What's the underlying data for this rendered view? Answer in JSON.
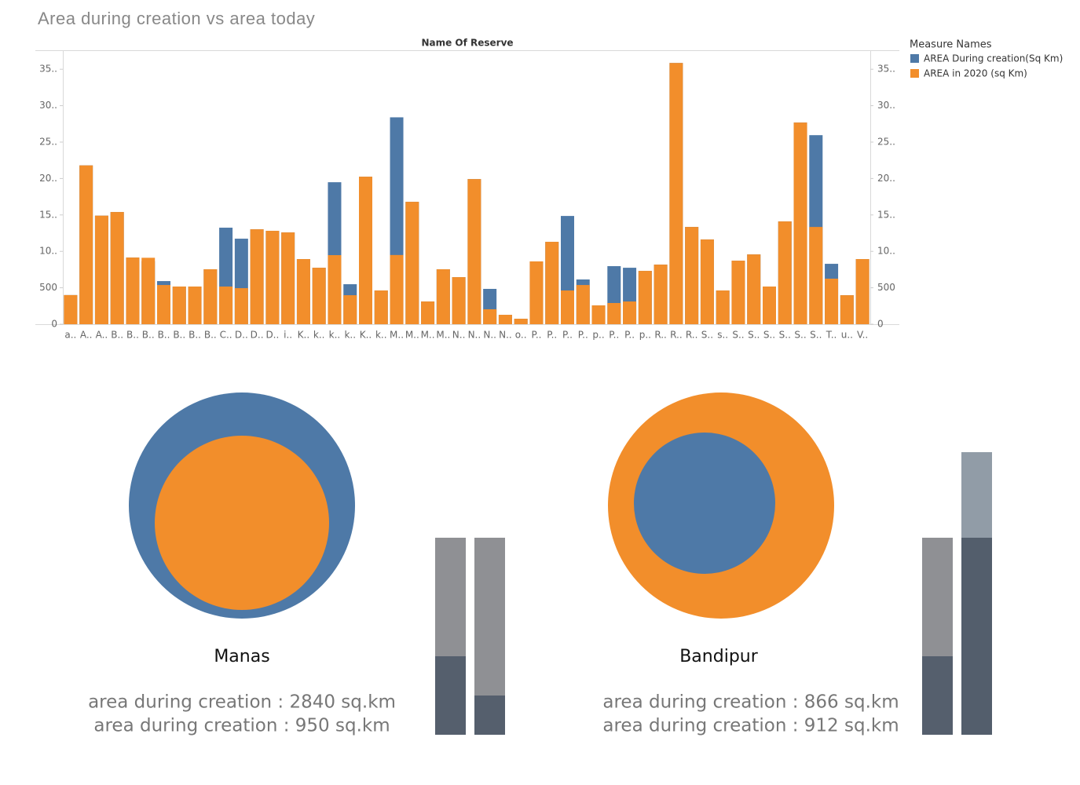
{
  "chart_data": {
    "type": "bar",
    "title": "Area during creation vs area today",
    "header": "Name Of Reserve",
    "legend_title": "Measure Names",
    "legend": "right",
    "grid": false,
    "categories": [
      "a..",
      "A..",
      "A..",
      "B..",
      "B..",
      "B..",
      "B..",
      "B..",
      "B..",
      "B..",
      "C..",
      "D..",
      "D..",
      "D..",
      "i..",
      "K..",
      "k..",
      "k..",
      "k..",
      "K..",
      "k..",
      "M..",
      "M..",
      "M..",
      "M..",
      "N..",
      "N..",
      "N..",
      "N..",
      "o..",
      "P..",
      "P..",
      "P..",
      "P..",
      "p..",
      "P..",
      "P..",
      "p..",
      "R..",
      "R..",
      "R..",
      "S..",
      "s..",
      "S..",
      "S..",
      "S..",
      "S..",
      "S..",
      "S..",
      "T..",
      "u..",
      "V.."
    ],
    "series": [
      {
        "name": "AREA During creation(Sq Km)",
        "color": "#4e79a7",
        "values": [
          400,
          2180,
          1490,
          1540,
          915,
          866,
          592,
          517,
          517,
          754,
          1325,
          1174,
          1303,
          1282,
          1260,
          894,
          775,
          1949,
          549,
          2025,
          463,
          2840,
          1680,
          312,
          754,
          646,
          1992,
          485,
          129,
          75,
          862,
          1131,
          1486,
          614,
          258,
          797,
          775,
          732,
          818,
          3586,
          1335,
          1163,
          463,
          872,
          958,
          517,
          1411,
          2768,
          2595,
          829,
          398,
          894
        ]
      },
      {
        "name": "AREA in 2020 (sq Km)",
        "color": "#f28e2b",
        "axis": "y2",
        "values": [
          400,
          2180,
          1490,
          1540,
          915,
          912,
          538,
          517,
          517,
          754,
          517,
          495,
          1303,
          1282,
          1260,
          894,
          775,
          948,
          398,
          2025,
          463,
          950,
          1680,
          312,
          754,
          646,
          1992,
          205,
          129,
          75,
          862,
          1131,
          463,
          538,
          258,
          291,
          312,
          732,
          818,
          3586,
          1335,
          1163,
          463,
          872,
          958,
          517,
          1411,
          2768,
          1335,
          625,
          398,
          894
        ]
      }
    ],
    "ylim": [
      0,
      3750
    ],
    "yticks": [
      0,
      500,
      {
        "value": 1000,
        "label": "10.."
      },
      {
        "value": 1500,
        "label": "15.."
      },
      {
        "value": 2000,
        "label": "20.."
      },
      {
        "value": 2500,
        "label": "25.."
      },
      {
        "value": 3000,
        "label": "30.."
      },
      {
        "value": 3500,
        "label": "35.."
      }
    ],
    "y2lim": [
      0,
      3750
    ],
    "y2ticks": [
      0,
      500,
      {
        "value": 1000,
        "label": "10.."
      },
      {
        "value": 1500,
        "label": "15.."
      },
      {
        "value": 2000,
        "label": "20.."
      },
      {
        "value": 2500,
        "label": "25.."
      },
      {
        "value": 3000,
        "label": "30.."
      },
      {
        "value": 3500,
        "label": "35.."
      }
    ]
  },
  "panels": [
    {
      "name": "Manas",
      "lines": [
        "area during creation : 2840 sq.km",
        "area during creation : 950 sq.km"
      ]
    },
    {
      "name": "Bandipur",
      "lines": [
        "area during creation : 866 sq.km",
        "area during creation : 912 sq.km"
      ]
    }
  ]
}
